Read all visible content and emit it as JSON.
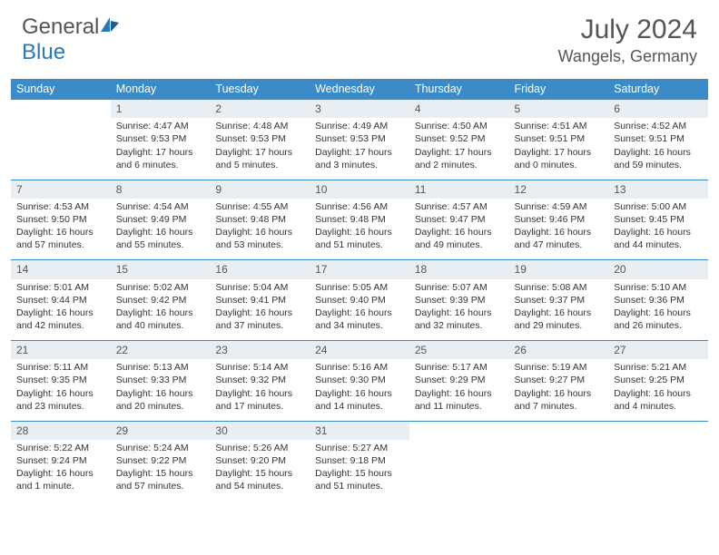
{
  "logo": {
    "text1": "General",
    "text2": "Blue"
  },
  "title": "July 2024",
  "location": "Wangels, Germany",
  "colors": {
    "header_bg": "#3b8bc9",
    "header_text": "#ffffff",
    "daynum_bg": "#e9eef2",
    "border": "#3b8bc9",
    "text": "#333333",
    "logo_gray": "#555555",
    "logo_blue": "#2a7ab8"
  },
  "weekdays": [
    "Sunday",
    "Monday",
    "Tuesday",
    "Wednesday",
    "Thursday",
    "Friday",
    "Saturday"
  ],
  "weeks": [
    [
      null,
      {
        "n": "1",
        "sr": "4:47 AM",
        "ss": "9:53 PM",
        "dl": "17 hours and 6 minutes."
      },
      {
        "n": "2",
        "sr": "4:48 AM",
        "ss": "9:53 PM",
        "dl": "17 hours and 5 minutes."
      },
      {
        "n": "3",
        "sr": "4:49 AM",
        "ss": "9:53 PM",
        "dl": "17 hours and 3 minutes."
      },
      {
        "n": "4",
        "sr": "4:50 AM",
        "ss": "9:52 PM",
        "dl": "17 hours and 2 minutes."
      },
      {
        "n": "5",
        "sr": "4:51 AM",
        "ss": "9:51 PM",
        "dl": "17 hours and 0 minutes."
      },
      {
        "n": "6",
        "sr": "4:52 AM",
        "ss": "9:51 PM",
        "dl": "16 hours and 59 minutes."
      }
    ],
    [
      {
        "n": "7",
        "sr": "4:53 AM",
        "ss": "9:50 PM",
        "dl": "16 hours and 57 minutes."
      },
      {
        "n": "8",
        "sr": "4:54 AM",
        "ss": "9:49 PM",
        "dl": "16 hours and 55 minutes."
      },
      {
        "n": "9",
        "sr": "4:55 AM",
        "ss": "9:48 PM",
        "dl": "16 hours and 53 minutes."
      },
      {
        "n": "10",
        "sr": "4:56 AM",
        "ss": "9:48 PM",
        "dl": "16 hours and 51 minutes."
      },
      {
        "n": "11",
        "sr": "4:57 AM",
        "ss": "9:47 PM",
        "dl": "16 hours and 49 minutes."
      },
      {
        "n": "12",
        "sr": "4:59 AM",
        "ss": "9:46 PM",
        "dl": "16 hours and 47 minutes."
      },
      {
        "n": "13",
        "sr": "5:00 AM",
        "ss": "9:45 PM",
        "dl": "16 hours and 44 minutes."
      }
    ],
    [
      {
        "n": "14",
        "sr": "5:01 AM",
        "ss": "9:44 PM",
        "dl": "16 hours and 42 minutes."
      },
      {
        "n": "15",
        "sr": "5:02 AM",
        "ss": "9:42 PM",
        "dl": "16 hours and 40 minutes."
      },
      {
        "n": "16",
        "sr": "5:04 AM",
        "ss": "9:41 PM",
        "dl": "16 hours and 37 minutes."
      },
      {
        "n": "17",
        "sr": "5:05 AM",
        "ss": "9:40 PM",
        "dl": "16 hours and 34 minutes."
      },
      {
        "n": "18",
        "sr": "5:07 AM",
        "ss": "9:39 PM",
        "dl": "16 hours and 32 minutes."
      },
      {
        "n": "19",
        "sr": "5:08 AM",
        "ss": "9:37 PM",
        "dl": "16 hours and 29 minutes."
      },
      {
        "n": "20",
        "sr": "5:10 AM",
        "ss": "9:36 PM",
        "dl": "16 hours and 26 minutes."
      }
    ],
    [
      {
        "n": "21",
        "sr": "5:11 AM",
        "ss": "9:35 PM",
        "dl": "16 hours and 23 minutes."
      },
      {
        "n": "22",
        "sr": "5:13 AM",
        "ss": "9:33 PM",
        "dl": "16 hours and 20 minutes."
      },
      {
        "n": "23",
        "sr": "5:14 AM",
        "ss": "9:32 PM",
        "dl": "16 hours and 17 minutes."
      },
      {
        "n": "24",
        "sr": "5:16 AM",
        "ss": "9:30 PM",
        "dl": "16 hours and 14 minutes."
      },
      {
        "n": "25",
        "sr": "5:17 AM",
        "ss": "9:29 PM",
        "dl": "16 hours and 11 minutes."
      },
      {
        "n": "26",
        "sr": "5:19 AM",
        "ss": "9:27 PM",
        "dl": "16 hours and 7 minutes."
      },
      {
        "n": "27",
        "sr": "5:21 AM",
        "ss": "9:25 PM",
        "dl": "16 hours and 4 minutes."
      }
    ],
    [
      {
        "n": "28",
        "sr": "5:22 AM",
        "ss": "9:24 PM",
        "dl": "16 hours and 1 minute."
      },
      {
        "n": "29",
        "sr": "5:24 AM",
        "ss": "9:22 PM",
        "dl": "15 hours and 57 minutes."
      },
      {
        "n": "30",
        "sr": "5:26 AM",
        "ss": "9:20 PM",
        "dl": "15 hours and 54 minutes."
      },
      {
        "n": "31",
        "sr": "5:27 AM",
        "ss": "9:18 PM",
        "dl": "15 hours and 51 minutes."
      },
      null,
      null,
      null
    ]
  ],
  "labels": {
    "sunrise": "Sunrise:",
    "sunset": "Sunset:",
    "daylight": "Daylight:"
  }
}
